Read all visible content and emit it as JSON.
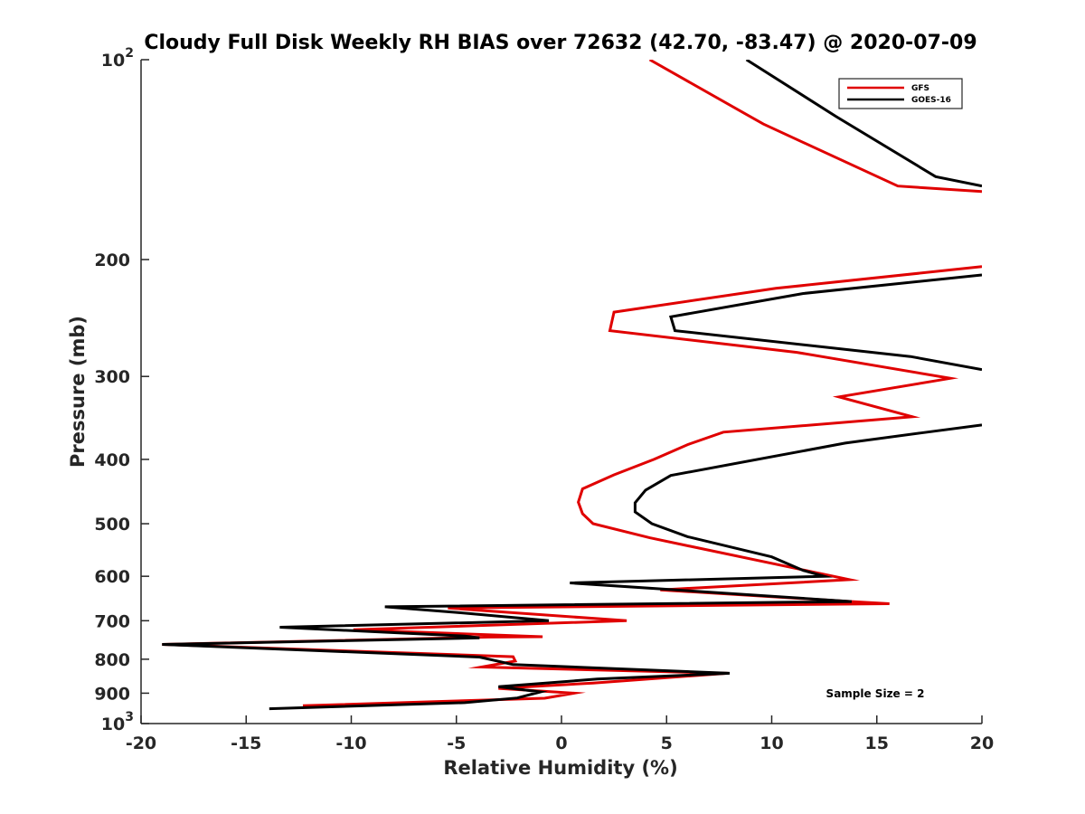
{
  "chart_data": {
    "type": "line",
    "title": "Cloudy Full Disk Weekly RH BIAS over 72632 (42.70, -83.47) @ 2020-07-09",
    "xlabel": "Relative Humidity (%)",
    "ylabel": "Pressure (mb)",
    "xlim": [
      -20,
      20
    ],
    "ylim": [
      100,
      1000
    ],
    "y_scale": "log",
    "y_reversed": true,
    "x_ticks": [
      "-20",
      "-15",
      "-10",
      "-5",
      "0",
      "5",
      "10",
      "15",
      "20"
    ],
    "y_ticks": [
      {
        "value": 100,
        "base": "10",
        "exp": "2"
      },
      {
        "value": 200,
        "label": "200"
      },
      {
        "value": 300,
        "label": "300"
      },
      {
        "value": 400,
        "label": "400"
      },
      {
        "value": 500,
        "label": "500"
      },
      {
        "value": 600,
        "label": "600"
      },
      {
        "value": 700,
        "label": "700"
      },
      {
        "value": 800,
        "label": "800"
      },
      {
        "value": 900,
        "label": "900"
      },
      {
        "value": 1000,
        "base": "10",
        "exp": "3"
      }
    ],
    "legend_position": "top-right",
    "annotation": "Sample Size = 2",
    "series": [
      {
        "name": "GFS",
        "color": "#e00000",
        "points": [
          [
            4.2,
            100
          ],
          [
            9.6,
            125
          ],
          [
            16.0,
            155
          ],
          [
            20.0,
            158
          ],
          [
            null,
            null
          ],
          [
            20.0,
            205
          ],
          [
            10.2,
            221
          ],
          [
            2.5,
            240
          ],
          [
            2.3,
            256
          ],
          [
            11.2,
            276
          ],
          [
            18.5,
            302
          ],
          [
            13.2,
            322
          ],
          [
            16.7,
            345
          ],
          [
            7.7,
            364
          ],
          [
            6.0,
            380
          ],
          [
            4.4,
            400
          ],
          [
            2.5,
            422
          ],
          [
            1.0,
            443
          ],
          [
            0.8,
            464
          ],
          [
            1.0,
            483
          ],
          [
            1.5,
            500
          ],
          [
            4.2,
            525
          ],
          [
            13.7,
            607
          ],
          [
            4.7,
            629
          ],
          [
            13.8,
            655
          ],
          [
            15.6,
            660
          ],
          [
            -5.4,
            670
          ],
          [
            3.1,
            700
          ],
          [
            -9.9,
            722
          ],
          [
            -0.9,
            740
          ],
          [
            -3.5,
            741
          ],
          [
            -19.0,
            760
          ],
          [
            -2.3,
            793
          ],
          [
            -2.2,
            805
          ],
          [
            -3.8,
            822
          ],
          [
            7.9,
            840
          ],
          [
            1.5,
            869
          ],
          [
            -3.0,
            885
          ],
          [
            0.6,
            900
          ],
          [
            -0.8,
            916
          ],
          [
            -12.3,
            940
          ]
        ]
      },
      {
        "name": "GOES-16",
        "color": "#000000",
        "points": [
          [
            8.8,
            100
          ],
          [
            13.1,
            122
          ],
          [
            17.8,
            150
          ],
          [
            20.0,
            155
          ],
          [
            null,
            null
          ],
          [
            20.0,
            211
          ],
          [
            11.5,
            225
          ],
          [
            5.2,
            244
          ],
          [
            5.4,
            256
          ],
          [
            16.6,
            280
          ],
          [
            20.0,
            293
          ],
          [
            null,
            null
          ],
          [
            20.0,
            355
          ],
          [
            17.1,
            365
          ],
          [
            13.5,
            378
          ],
          [
            5.2,
            423
          ],
          [
            4.0,
            445
          ],
          [
            3.5,
            465
          ],
          [
            3.5,
            480
          ],
          [
            4.3,
            500
          ],
          [
            6.0,
            523
          ],
          [
            10.0,
            561
          ],
          [
            11.5,
            588
          ],
          [
            12.5,
            600
          ],
          [
            0.4,
            614
          ],
          [
            13.8,
            655
          ],
          [
            -8.4,
            667
          ],
          [
            -5.0,
            680
          ],
          [
            -0.6,
            700
          ],
          [
            -13.4,
            716
          ],
          [
            -4.6,
            738
          ],
          [
            -3.9,
            743
          ],
          [
            -19.0,
            760
          ],
          [
            -3.9,
            794
          ],
          [
            -2.3,
            815
          ],
          [
            8.0,
            840
          ],
          [
            1.7,
            857
          ],
          [
            -3.0,
            880
          ],
          [
            -1.0,
            896
          ],
          [
            -2.1,
            915
          ],
          [
            -4.6,
            930
          ],
          [
            -13.9,
            950
          ]
        ]
      }
    ]
  }
}
